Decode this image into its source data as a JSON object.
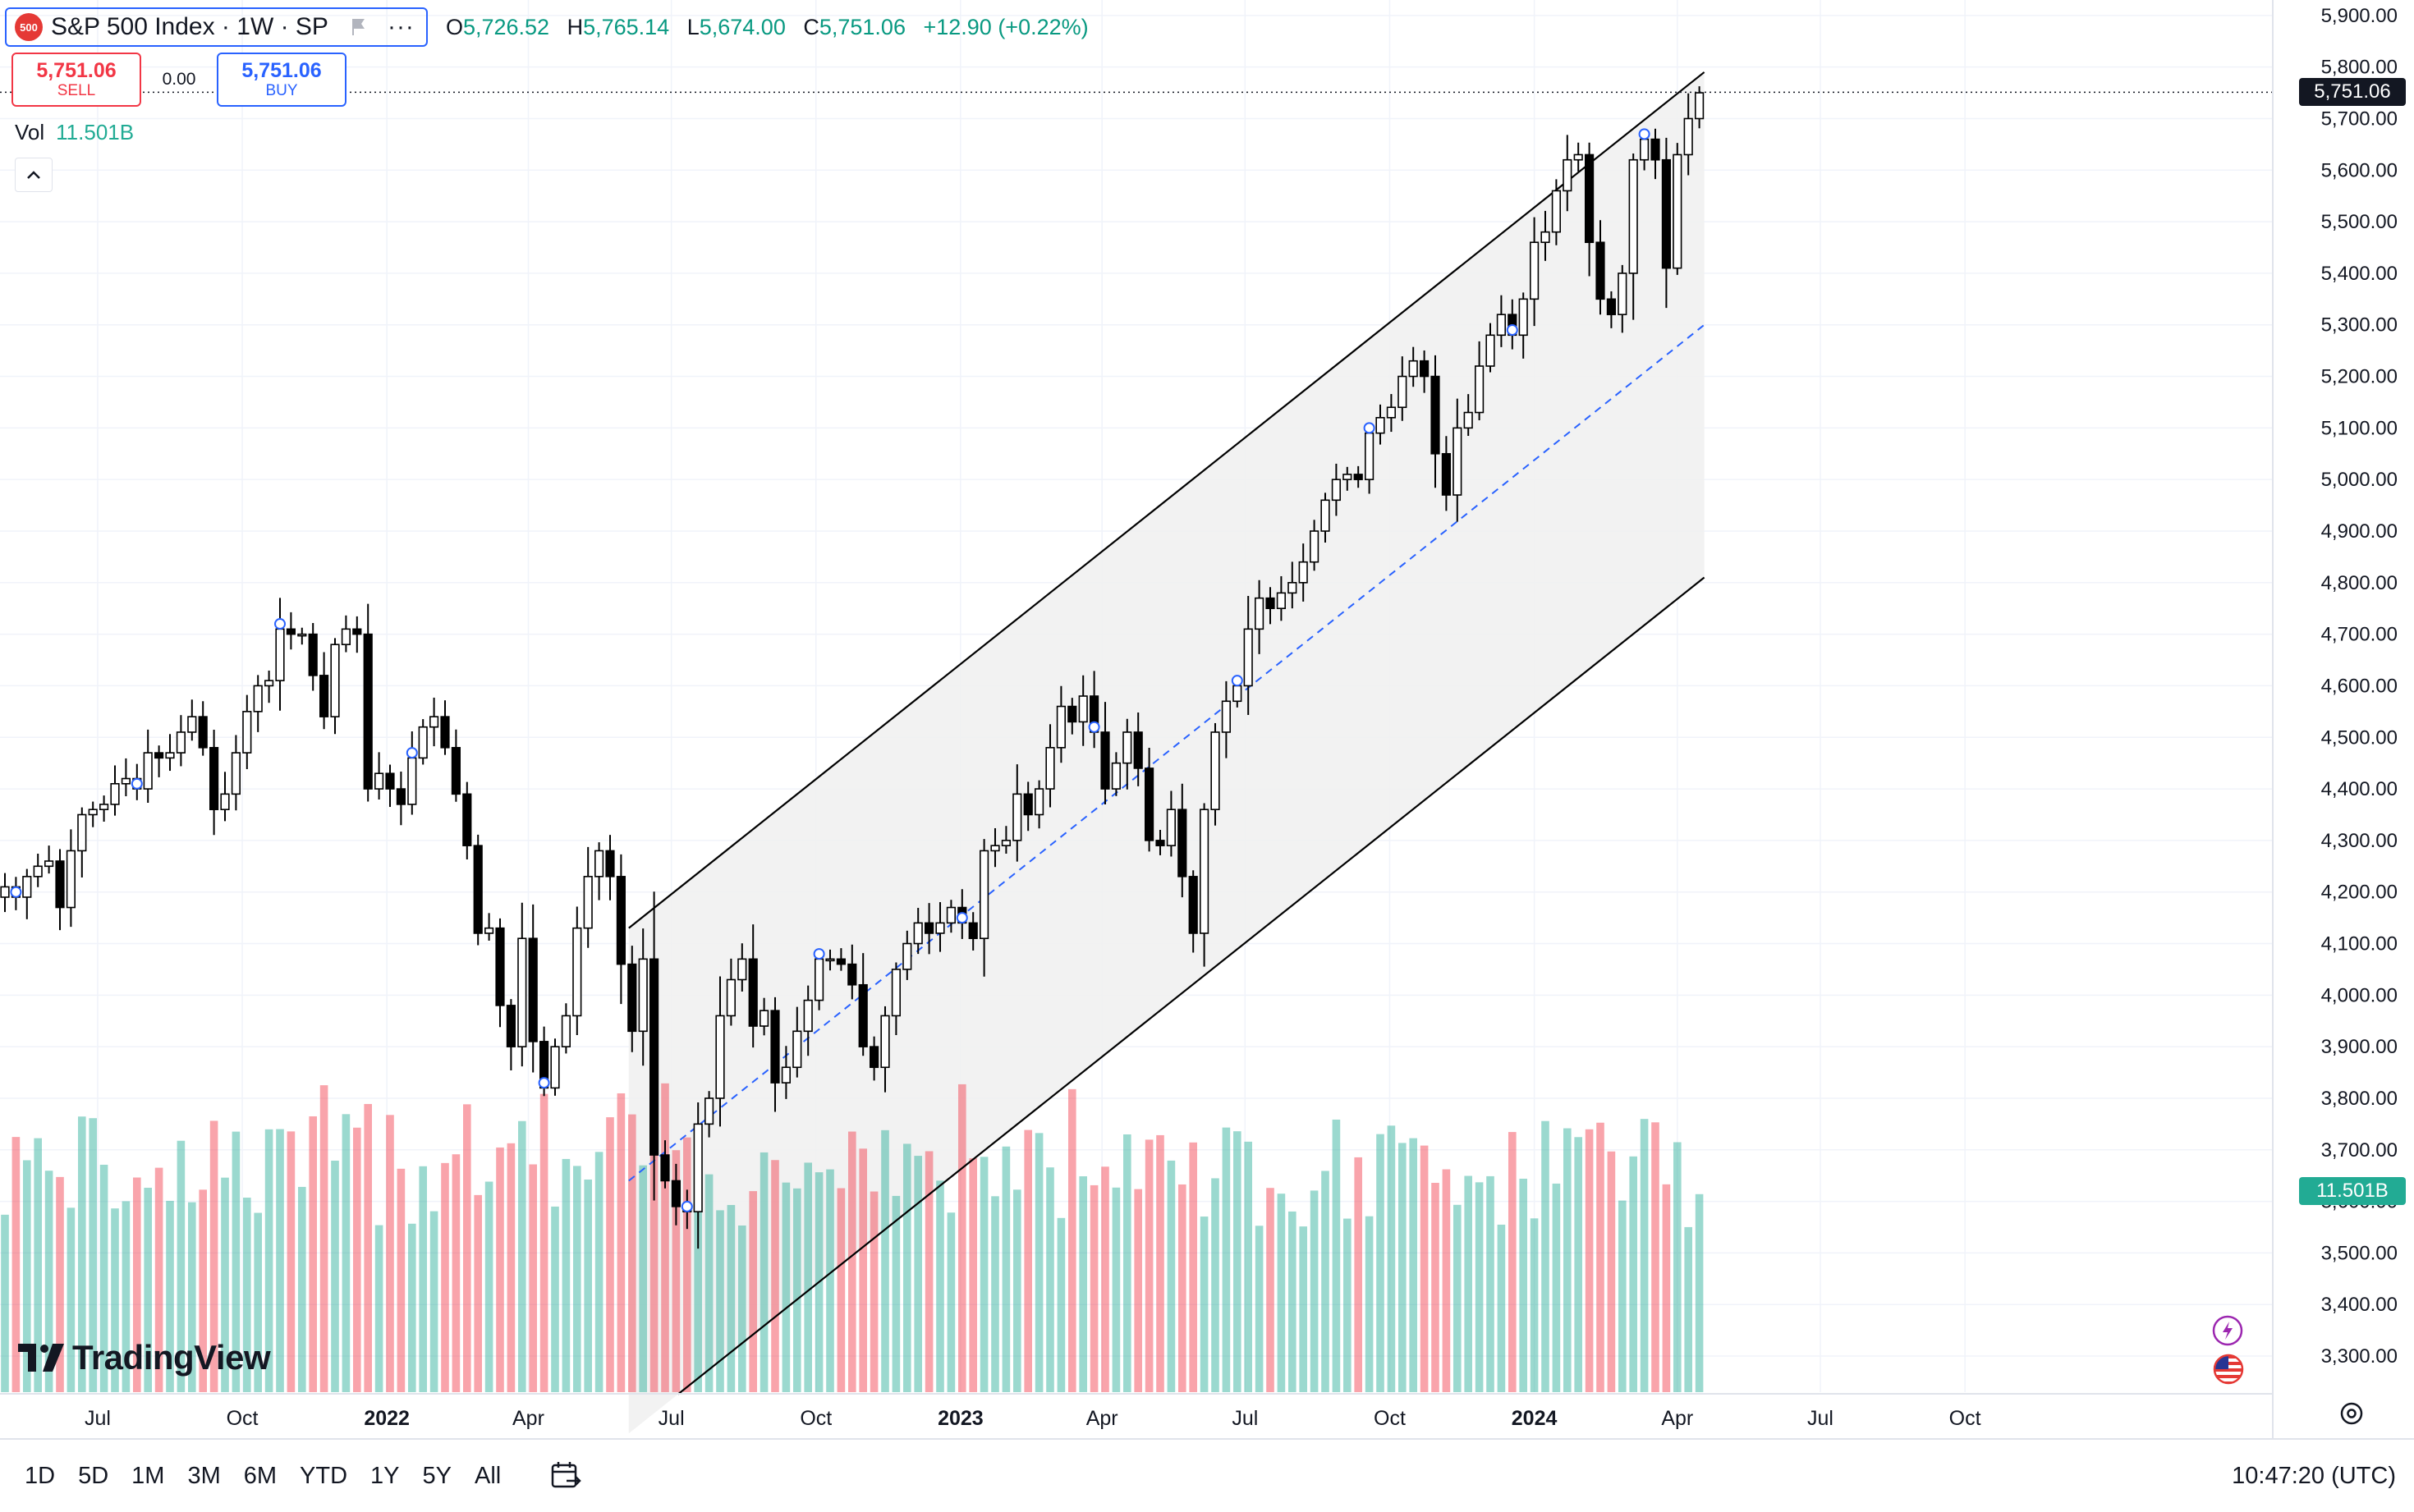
{
  "header": {
    "logo_text": "500",
    "symbol_title": "S&P 500 Index · 1W · SP",
    "more_label": "···",
    "ohlc": [
      {
        "key": "O",
        "value": "5,726.52"
      },
      {
        "key": "H",
        "value": "5,765.14"
      },
      {
        "key": "L",
        "value": "5,674.00"
      },
      {
        "key": "C",
        "value": "5,751.06"
      }
    ],
    "change": "+12.90 (+0.22%)"
  },
  "trade": {
    "sell_price": "5,751.06",
    "sell_label": "SELL",
    "spread": "0.00",
    "buy_price": "5,751.06",
    "buy_label": "BUY"
  },
  "volume_legend": {
    "label": "Vol",
    "value": "11.501B"
  },
  "brand": {
    "name": "TradingView"
  },
  "price_scale": {
    "last_price_label": "5,751.06",
    "last_volume_label": "11.501B"
  },
  "bottom_toolbar": {
    "ranges": [
      "1D",
      "5D",
      "1M",
      "3M",
      "6M",
      "YTD",
      "1Y",
      "5Y",
      "All"
    ],
    "clock": "10:47:20 (UTC)"
  },
  "colors": {
    "up_candle_fill": "#ffffff",
    "down_candle_fill": "#000000",
    "candle_border": "#000000",
    "up_volume": "#22ab94",
    "down_volume": "#f23645",
    "channel_fill": "#f0f0f0",
    "channel_line": "#000000",
    "median_line": "#2962ff",
    "grid": "#f0f3fa"
  },
  "icons": {
    "flag": "flag-icon",
    "settings": "gear-icon",
    "calendar": "calendar-goto-icon",
    "collapse": "chevron-up-icon",
    "bolt": "lightning-icon",
    "country": "us-flag-icon"
  },
  "chart_data": {
    "type": "candlestick",
    "title": "S&P 500 Index · 1W · SP",
    "interval": "1W",
    "y_axis": {
      "ylim": [
        3230,
        5930
      ],
      "ticks": [
        3300,
        3400,
        3500,
        3600,
        3700,
        3800,
        3900,
        4000,
        4100,
        4200,
        4300,
        4400,
        4500,
        4600,
        4700,
        4800,
        4900,
        5000,
        5100,
        5200,
        5300,
        5400,
        5500,
        5600,
        5700,
        5800,
        5900
      ],
      "tick_labels": [
        "3,300.00",
        "3,400.00",
        "3,500.00",
        "3,600.00",
        "3,700.00",
        "3,800.00",
        "3,900.00",
        "4,000.00",
        "4,100.00",
        "4,200.00",
        "4,300.00",
        "4,400.00",
        "4,500.00",
        "4,600.00",
        "4,700.00",
        "4,800.00",
        "4,900.00",
        "5,000.00",
        "5,100.00",
        "5,200.00",
        "5,300.00",
        "5,400.00",
        "5,500.00",
        "5,600.00",
        "5,700.00",
        "5,800.00",
        "5,900.00"
      ],
      "last_price": 5751.06
    },
    "x_axis": {
      "start": "2021-05-03",
      "end": "2024-09-23",
      "ticks": [
        {
          "date": "2021-07-01",
          "label": "Jul"
        },
        {
          "date": "2021-10-01",
          "label": "Oct"
        },
        {
          "date": "2022-01-01",
          "label": "2022"
        },
        {
          "date": "2022-04-01",
          "label": "Apr"
        },
        {
          "date": "2022-07-01",
          "label": "Jul"
        },
        {
          "date": "2022-10-01",
          "label": "Oct"
        },
        {
          "date": "2023-01-01",
          "label": "2023"
        },
        {
          "date": "2023-04-01",
          "label": "Apr"
        },
        {
          "date": "2023-07-01",
          "label": "Jul"
        },
        {
          "date": "2023-10-01",
          "label": "Oct"
        },
        {
          "date": "2024-01-01",
          "label": "2024"
        },
        {
          "date": "2024-04-01",
          "label": "Apr"
        },
        {
          "date": "2024-07-01",
          "label": "Jul"
        },
        {
          "date": "2024-10-01",
          "label": "Oct"
        }
      ]
    },
    "closes": [
      4210,
      4190,
      4230,
      4250,
      4260,
      4170,
      4280,
      4350,
      4360,
      4370,
      4410,
      4420,
      4400,
      4470,
      4460,
      4470,
      4510,
      4540,
      4480,
      4360,
      4390,
      4470,
      4550,
      4600,
      4610,
      4710,
      4700,
      4700,
      4620,
      4540,
      4680,
      4710,
      4700,
      4400,
      4430,
      4400,
      4370,
      4460,
      4520,
      4540,
      4480,
      4390,
      4290,
      4120,
      4130,
      3980,
      3900,
      4110,
      3910,
      3820,
      3900,
      3960,
      4130,
      4230,
      4280,
      4230,
      4060,
      3930,
      4070,
      3690,
      3640,
      3590,
      3580,
      3750,
      3800,
      3960,
      4030,
      4070,
      3940,
      3970,
      3830,
      3860,
      3930,
      3990,
      4070,
      4070,
      4060,
      4020,
      3900,
      3860,
      3960,
      4050,
      4100,
      4140,
      4120,
      4140,
      4170,
      4140,
      4110,
      4280,
      4290,
      4300,
      4390,
      4350,
      4400,
      4480,
      4560,
      4530,
      4580,
      4510,
      4400,
      4450,
      4510,
      4440,
      4300,
      4290,
      4360,
      4230,
      4120,
      4360,
      4510,
      4570,
      4600,
      4710,
      4770,
      4750,
      4780,
      4800,
      4840,
      4900,
      4960,
      5000,
      5010,
      5000,
      5090,
      5120,
      5140,
      5200,
      5230,
      5200,
      5050,
      4970,
      5100,
      5130,
      5220,
      5280,
      5320,
      5280,
      5350,
      5460,
      5480,
      5560,
      5620,
      5630,
      5460,
      5350,
      5320,
      5400,
      5620,
      5660,
      5620,
      5410,
      5630,
      5700,
      5750
    ]
  }
}
